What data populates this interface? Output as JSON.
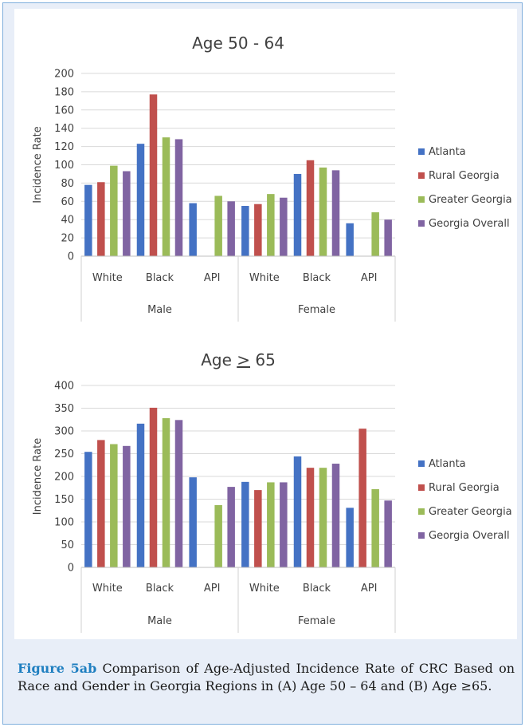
{
  "caption": {
    "label": "Figure 5ab",
    "text": " Comparison of Age-Adjusted Incidence Rate of CRC Based on Race and Gender in Georgia Regions in (A) Age 50 – 64 and (B) Age ≥65."
  },
  "chart_data": [
    {
      "type": "bar",
      "title": "Age 50 - 64",
      "ylabel": "Incidence Rate",
      "xlabel": "",
      "ylim": [
        0,
        200
      ],
      "yticks": [
        0,
        20,
        40,
        60,
        80,
        100,
        120,
        140,
        160,
        180,
        200
      ],
      "grid": true,
      "legend_position": "right",
      "groups": [
        {
          "label": "Male",
          "categories": [
            "White",
            "Black",
            "API"
          ]
        },
        {
          "label": "Female",
          "categories": [
            "White",
            "Black",
            "API"
          ]
        }
      ],
      "categories": [
        "White",
        "Black",
        "API",
        "White",
        "Black",
        "API"
      ],
      "series": [
        {
          "name": "Atlanta",
          "color": "#4472c4",
          "values": [
            78,
            123,
            58,
            55,
            90,
            36
          ]
        },
        {
          "name": "Rural Georgia",
          "color": "#c0504d",
          "values": [
            81,
            177,
            null,
            57,
            105,
            null
          ]
        },
        {
          "name": "Greater Georgia",
          "color": "#9bbb59",
          "values": [
            99,
            130,
            66,
            68,
            97,
            48
          ]
        },
        {
          "name": "Georgia Overall",
          "color": "#8064a2",
          "values": [
            93,
            128,
            60,
            64,
            94,
            40
          ]
        }
      ]
    },
    {
      "type": "bar",
      "title_prefix": "Age ",
      "title_symbol": ">",
      "title_suffix": " 65",
      "ylabel": "Incidence Rate",
      "xlabel": "",
      "ylim": [
        0,
        400
      ],
      "yticks": [
        0,
        50,
        100,
        150,
        200,
        250,
        300,
        350,
        400
      ],
      "grid": true,
      "legend_position": "right",
      "groups": [
        {
          "label": "Male",
          "categories": [
            "White",
            "Black",
            "API"
          ]
        },
        {
          "label": "Female",
          "categories": [
            "White",
            "Black",
            "API"
          ]
        }
      ],
      "categories": [
        "White",
        "Black",
        "API",
        "White",
        "Black",
        "API"
      ],
      "series": [
        {
          "name": "Atlanta",
          "color": "#4472c4",
          "values": [
            254,
            316,
            198,
            188,
            244,
            131
          ]
        },
        {
          "name": "Rural Georgia",
          "color": "#c0504d",
          "values": [
            280,
            351,
            null,
            170,
            219,
            305
          ]
        },
        {
          "name": "Greater Georgia",
          "color": "#9bbb59",
          "values": [
            271,
            328,
            137,
            187,
            219,
            172
          ]
        },
        {
          "name": "Georgia Overall",
          "color": "#8064a2",
          "values": [
            267,
            324,
            177,
            187,
            228,
            147
          ]
        }
      ]
    }
  ]
}
